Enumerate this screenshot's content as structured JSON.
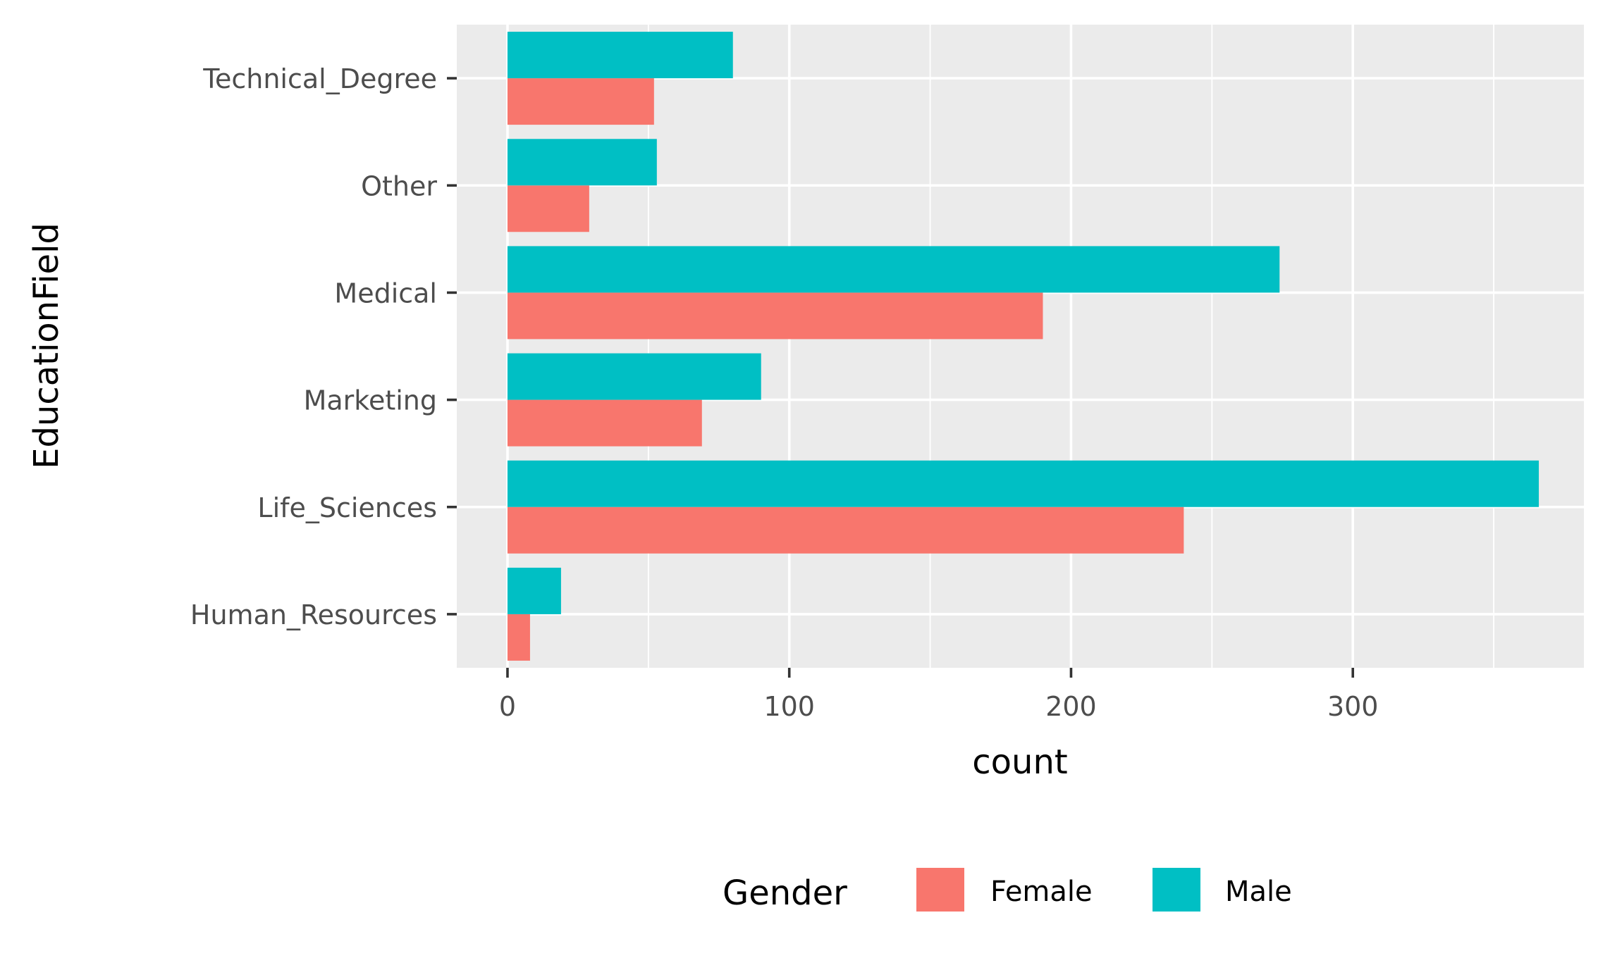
{
  "chart_data": {
    "type": "bar",
    "orientation": "horizontal",
    "categories": [
      "Human_Resources",
      "Life_Sciences",
      "Marketing",
      "Medical",
      "Other",
      "Technical_Degree"
    ],
    "series": [
      {
        "name": "Female",
        "color": "#F8766D",
        "values": [
          8,
          240,
          69,
          190,
          29,
          52
        ]
      },
      {
        "name": "Male",
        "color": "#00BFC4",
        "values": [
          19,
          366,
          90,
          274,
          53,
          80
        ]
      }
    ],
    "xlabel": "count",
    "ylabel": "EducationField",
    "xlim": [
      -18,
      382
    ],
    "xticks": [
      0,
      100,
      200,
      300
    ],
    "grid": true,
    "legend": {
      "title": "Gender",
      "position": "bottom"
    },
    "panel_background": "#EBEBEB",
    "grid_color": "#FFFFFF"
  }
}
